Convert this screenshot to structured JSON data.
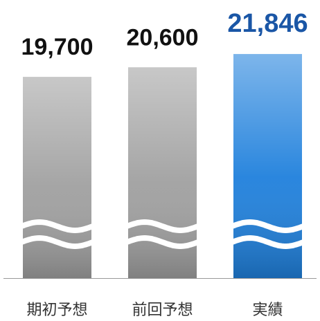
{
  "chart_data": {
    "type": "bar",
    "categories": [
      "期初予想",
      "前回予想",
      "実績"
    ],
    "values": [
      19700,
      20600,
      21846
    ],
    "value_labels": [
      "19,700",
      "20,600",
      "21,846"
    ],
    "colors": [
      "#a0a0a0",
      "#a0a0a0",
      "#1f80dc"
    ],
    "label_colors": [
      "#111111",
      "#111111",
      "#1a56a6"
    ],
    "ylim": [
      800,
      24000
    ]
  }
}
